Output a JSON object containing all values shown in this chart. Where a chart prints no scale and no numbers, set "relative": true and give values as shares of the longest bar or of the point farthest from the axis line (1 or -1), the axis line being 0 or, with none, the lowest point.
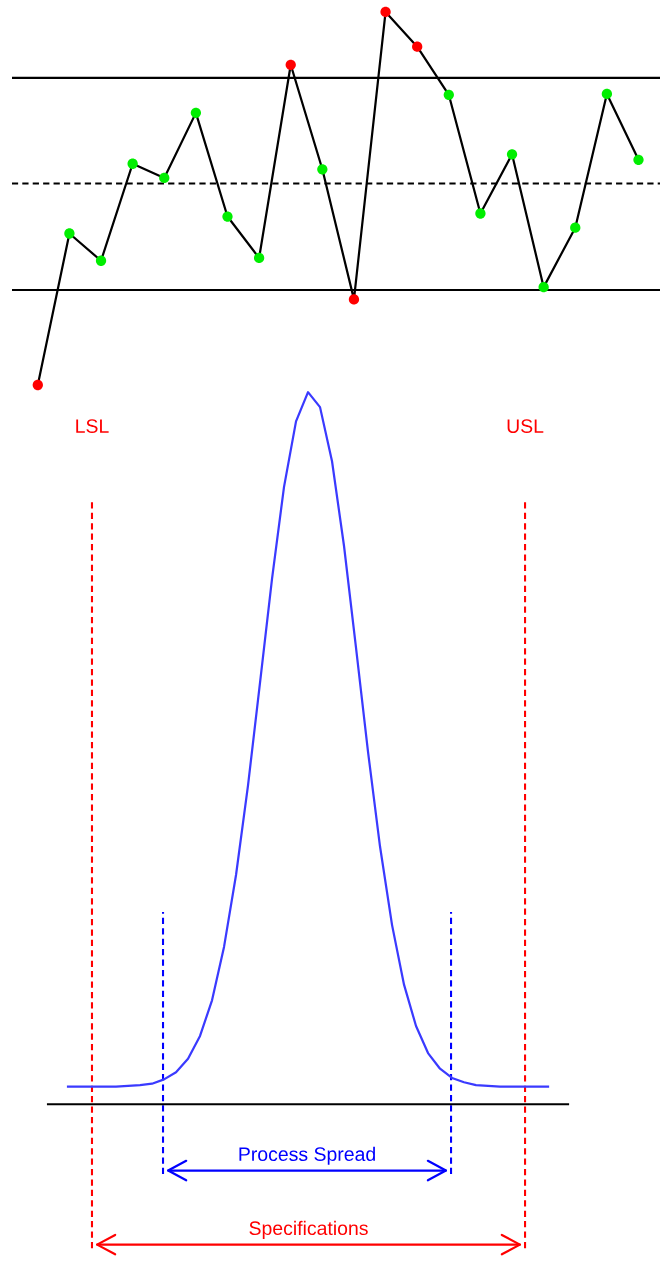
{
  "chart_data": [
    {
      "type": "line",
      "relative": true,
      "grid": false,
      "marker": "circle",
      "categories": [
        null,
        null,
        null,
        null,
        null,
        null,
        null,
        null,
        null,
        null,
        null,
        null,
        null,
        null,
        null,
        null,
        null,
        null,
        null,
        null
      ],
      "series": [
        {
          "color": "#000000",
          "values": [
            -0.342,
            0.203,
            0.105,
            0.454,
            0.403,
            0.637,
            0.264,
            0.115,
            0.81,
            0.434,
            -0.034,
            1,
            0.875,
            0.702,
            0.275,
            0.488,
            0.01,
            0.224,
            0.705,
            0.468
          ],
          "colors": [
            "#ff0000",
            "#00ee00",
            "#00ee00",
            "#00ee00",
            "#00ee00",
            "#00ee00",
            "#00ee00",
            "#00ee00",
            "#ff0000",
            "#00ee00",
            "#ff0000",
            "#ff0000",
            "#ff0000",
            "#00ee00",
            "#00ee00",
            "#00ee00",
            "#00ee00",
            "#00ee00",
            "#00ee00",
            "#00ee00"
          ]
        }
      ],
      "ref_lines": [
        {
          "axis": "y",
          "value": 0.763,
          "color": "#000000",
          "line_style": "solid"
        },
        {
          "axis": "y",
          "value": 0.383,
          "color": "#000000",
          "line_style": "dashed"
        },
        {
          "axis": "y",
          "value": 0,
          "color": "#000000",
          "line_style": "solid"
        }
      ]
    },
    {
      "type": "line",
      "relative": true,
      "grid": false,
      "categories": [
        null,
        null,
        null,
        null,
        null,
        null,
        null,
        null,
        null,
        null,
        null,
        null,
        null,
        null,
        null,
        null,
        null,
        null,
        null,
        null,
        null,
        null,
        null,
        null,
        null,
        null,
        null,
        null,
        null,
        null,
        null,
        null,
        null,
        null,
        null,
        null,
        null,
        null,
        null,
        null,
        null
      ],
      "series": [
        {
          "color": "#3a3aff",
          "values": [
            0.025,
            0.025,
            0.025,
            0.025,
            0.025,
            0.026,
            0.027,
            0.029,
            0.035,
            0.045,
            0.064,
            0.096,
            0.146,
            0.221,
            0.322,
            0.448,
            0.592,
            0.738,
            0.867,
            0.959,
            1,
            0.979,
            0.903,
            0.784,
            0.641,
            0.495,
            0.362,
            0.252,
            0.168,
            0.11,
            0.072,
            0.05,
            0.037,
            0.031,
            0.027,
            0.026,
            0.025,
            0.025,
            0.025,
            0.025,
            0.025
          ]
        }
      ],
      "annotations": [
        "LSL",
        "USL",
        "Process Spread",
        "Specifications"
      ]
    }
  ]
}
